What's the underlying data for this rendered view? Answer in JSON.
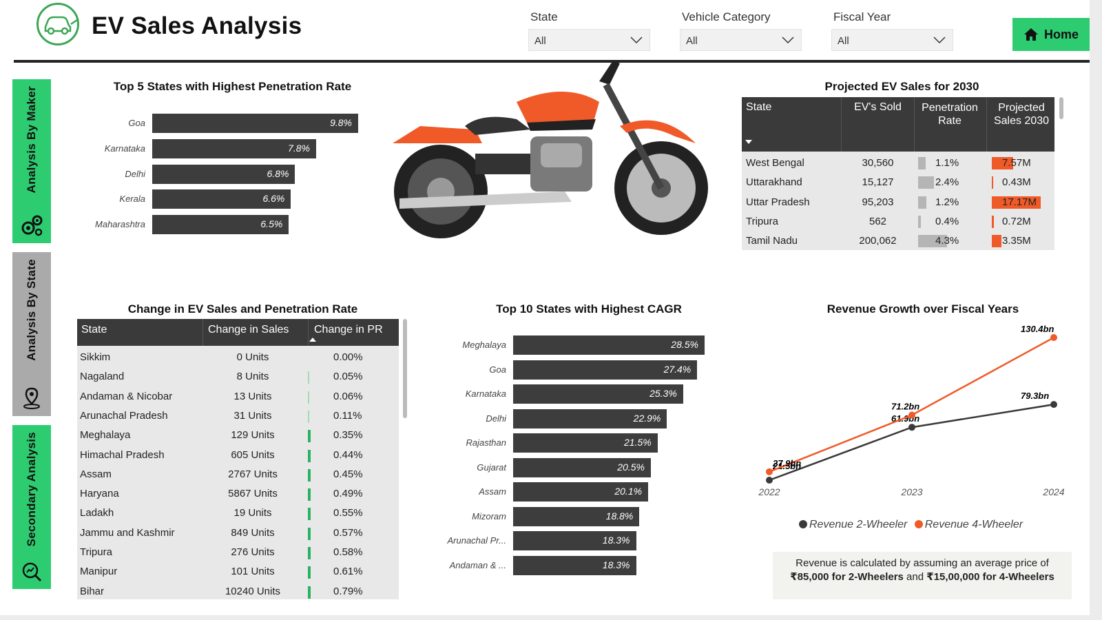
{
  "header": {
    "title": "EV Sales Analysis",
    "filters": [
      {
        "label": "State",
        "value": "All"
      },
      {
        "label": "Vehicle Category",
        "value": "All"
      },
      {
        "label": "Fiscal Year",
        "value": "All"
      }
    ],
    "home_label": "Home"
  },
  "nav": {
    "items": [
      {
        "label": "Analysis By Maker",
        "icon": "gears-icon",
        "color": "#2ecc71"
      },
      {
        "label": "Analysis By State",
        "icon": "map-pin-icon",
        "color": "#aaaaaa"
      },
      {
        "label": "Secondary Analysis",
        "icon": "search-chart-icon",
        "color": "#2ecc71"
      }
    ]
  },
  "top5": {
    "title": "Top 5 States with Highest Penetration Rate",
    "states": [
      "Goa",
      "Karnataka",
      "Delhi",
      "Kerala",
      "Maharashtra"
    ],
    "labels": [
      "9.8%",
      "7.8%",
      "6.8%",
      "6.6%",
      "6.5%"
    ]
  },
  "projected": {
    "title": "Projected EV Sales for 2030",
    "columns": [
      "State",
      "EV's Sold",
      "Penetration Rate",
      "Projected Sales 2030"
    ],
    "rows": [
      {
        "state": "West Bengal",
        "sold": "30,560",
        "pr": "1.1%",
        "proj": "7.57M",
        "pr_val": 1.1,
        "proj_val": 7.57
      },
      {
        "state": "Uttarakhand",
        "sold": "15,127",
        "pr": "2.4%",
        "proj": "0.43M",
        "pr_val": 2.4,
        "proj_val": 0.43
      },
      {
        "state": "Uttar Pradesh",
        "sold": "95,203",
        "pr": "1.2%",
        "proj": "17.17M",
        "pr_val": 1.2,
        "proj_val": 17.17
      },
      {
        "state": "Tripura",
        "sold": "562",
        "pr": "0.4%",
        "proj": "0.72M",
        "pr_val": 0.4,
        "proj_val": 0.72
      },
      {
        "state": "Tamil Nadu",
        "sold": "200,062",
        "pr": "4.3%",
        "proj": "3.35M",
        "pr_val": 4.3,
        "proj_val": 3.35
      }
    ]
  },
  "change": {
    "title": "Change in EV Sales and Penetration Rate",
    "columns": [
      "State",
      "Change in Sales",
      "Change in PR"
    ],
    "rows": [
      {
        "state": "Sikkim",
        "sales": "0 Units",
        "pr": "0.00%",
        "v": 0.0
      },
      {
        "state": "Nagaland",
        "sales": "8 Units",
        "pr": "0.05%",
        "v": 0.05
      },
      {
        "state": "Andaman & Nicobar",
        "sales": "13 Units",
        "pr": "0.06%",
        "v": 0.06
      },
      {
        "state": "Arunachal Pradesh",
        "sales": "31 Units",
        "pr": "0.11%",
        "v": 0.11
      },
      {
        "state": "Meghalaya",
        "sales": "129 Units",
        "pr": "0.35%",
        "v": 0.35
      },
      {
        "state": "Himachal Pradesh",
        "sales": "605 Units",
        "pr": "0.44%",
        "v": 0.44
      },
      {
        "state": "Assam",
        "sales": "2767 Units",
        "pr": "0.45%",
        "v": 0.45
      },
      {
        "state": "Haryana",
        "sales": "5867 Units",
        "pr": "0.49%",
        "v": 0.49
      },
      {
        "state": "Ladakh",
        "sales": "19 Units",
        "pr": "0.55%",
        "v": 0.55
      },
      {
        "state": "Jammu and Kashmir",
        "sales": "849 Units",
        "pr": "0.57%",
        "v": 0.57
      },
      {
        "state": "Tripura",
        "sales": "276 Units",
        "pr": "0.58%",
        "v": 0.58
      },
      {
        "state": "Manipur",
        "sales": "101 Units",
        "pr": "0.61%",
        "v": 0.61
      },
      {
        "state": "Bihar",
        "sales": "10240 Units",
        "pr": "0.79%",
        "v": 0.79
      }
    ]
  },
  "cagr": {
    "title": "Top 10 States with Highest CAGR",
    "states": [
      "Meghalaya",
      "Goa",
      "Karnataka",
      "Delhi",
      "Rajasthan",
      "Gujarat",
      "Assam",
      "Mizoram",
      "Arunachal Pr...",
      "Andaman & ..."
    ],
    "labels": [
      "28.5%",
      "27.4%",
      "25.3%",
      "22.9%",
      "21.5%",
      "20.5%",
      "20.1%",
      "18.8%",
      "18.3%",
      "18.3%"
    ]
  },
  "revenue": {
    "title": "Revenue Growth over Fiscal Years",
    "note_pre": "Revenue is calculated by assuming an average price of ",
    "note_bold1": "₹85,000 for 2-Wheelers",
    "note_mid": " and ",
    "note_bold2": "₹15,00,000 for 4-Wheelers"
  },
  "chart_data": [
    {
      "type": "bar",
      "orientation": "horizontal",
      "title": "Top 5 States with Highest Penetration Rate",
      "categories": [
        "Goa",
        "Karnataka",
        "Delhi",
        "Kerala",
        "Maharashtra"
      ],
      "values": [
        9.8,
        7.8,
        6.8,
        6.6,
        6.5
      ],
      "color": "#3d3d3d"
    },
    {
      "type": "bar",
      "orientation": "horizontal",
      "title": "Top 10 States with Highest CAGR",
      "categories": [
        "Meghalaya",
        "Goa",
        "Karnataka",
        "Delhi",
        "Rajasthan",
        "Gujarat",
        "Assam",
        "Mizoram",
        "Arunachal Pr...",
        "Andaman & ..."
      ],
      "values": [
        28.5,
        27.4,
        25.3,
        22.9,
        21.5,
        20.5,
        20.1,
        18.8,
        18.3,
        18.3
      ],
      "color": "#3d3d3d"
    },
    {
      "type": "line",
      "title": "Revenue Growth over Fiscal Years",
      "x": [
        "2022",
        "2023",
        "2024"
      ],
      "series": [
        {
          "name": "Revenue 2-Wheeler",
          "values": [
            21.5,
            61.9,
            79.3
          ],
          "labels": [
            "21.5bn",
            "61.9bn",
            "79.3bn"
          ],
          "color": "#3a3a3a"
        },
        {
          "name": "Revenue 4-Wheeler",
          "values": [
            27.9,
            71.2,
            130.4
          ],
          "labels": [
            "27.9bn",
            "71.2bn",
            "130.4bn"
          ],
          "color": "#f05a28"
        }
      ],
      "legend": "bottom"
    }
  ]
}
